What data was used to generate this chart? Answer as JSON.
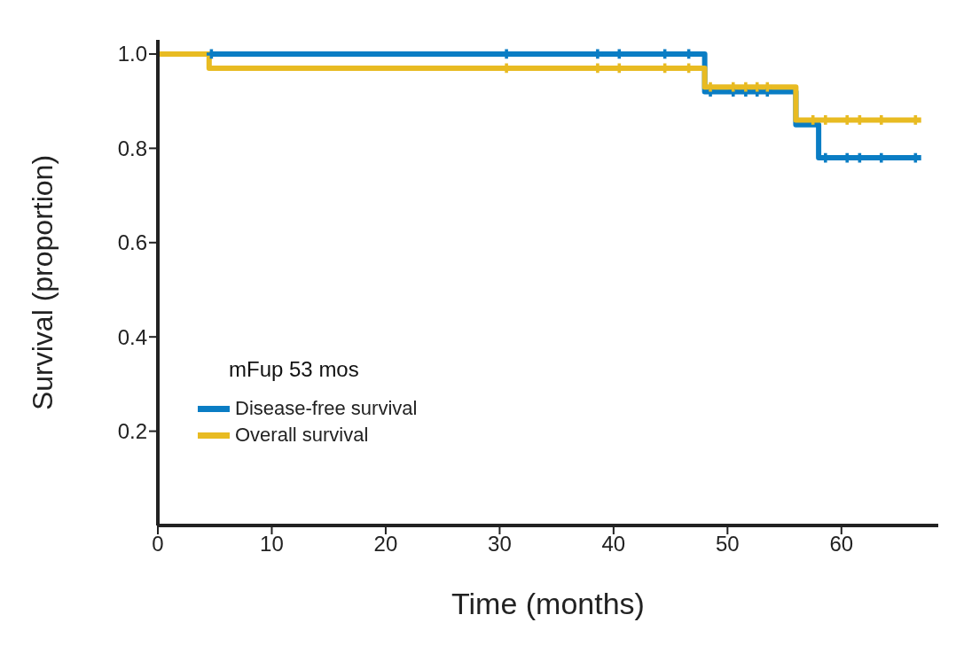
{
  "chart_data": {
    "type": "step",
    "xlabel": "Time (months)",
    "ylabel": "Survival (proportion)",
    "annotations": [
      "mFup 53 mos"
    ],
    "series": [
      {
        "name": "Disease-free survival",
        "color": "#0a7dc4",
        "x": [
          0,
          48,
          56,
          58,
          67
        ],
        "values": [
          1,
          0.92,
          0.85,
          0.78,
          0.78
        ]
      },
      {
        "name": "Overall survival",
        "color": "#e8bb22",
        "x": [
          0,
          4.5,
          48,
          56,
          67
        ],
        "values": [
          1,
          0.97,
          0.93,
          0.86,
          0.86
        ]
      },
      {
        "type": "scatter",
        "marker": "cross",
        "color": "#0a7dc4",
        "x": [
          4.7,
          30.6,
          38.6,
          40.5,
          44.5,
          46.6,
          48.5,
          50.5,
          51.6,
          52.6,
          53.5,
          58.6,
          60.5,
          61.6,
          63.5,
          66.5
        ],
        "values": [
          1,
          1,
          1,
          1,
          1,
          1,
          0.92,
          0.92,
          0.92,
          0.92,
          0.92,
          0.78,
          0.78,
          0.78,
          0.78,
          0.78
        ]
      },
      {
        "type": "scatter",
        "marker": "cross",
        "color": "#e8bb22",
        "x": [
          30.6,
          38.6,
          40.5,
          44.5,
          46.6,
          48.5,
          50.5,
          51.6,
          52.6,
          53.5,
          57.5,
          58.6,
          60.5,
          61.6,
          63.5,
          66.5
        ],
        "values": [
          0.97,
          0.97,
          0.97,
          0.97,
          0.97,
          0.93,
          0.93,
          0.93,
          0.93,
          0.93,
          0.86,
          0.86,
          0.86,
          0.86,
          0.86,
          0.86
        ]
      }
    ],
    "xlim": [
      0,
      68.5
    ],
    "xticks": [
      0,
      10,
      20,
      30,
      40,
      50,
      60
    ],
    "ylim": [
      0,
      1.03
    ],
    "yticks": [
      {
        "value": 0.2,
        "label": "0.2"
      },
      {
        "value": 0.4,
        "label": "0.4"
      },
      {
        "value": 0.6,
        "label": "0.6"
      },
      {
        "value": 0.8,
        "label": "0.8"
      },
      {
        "value": 1,
        "label": "1.0"
      }
    ],
    "legend": "bottom left",
    "grid": false,
    "line_style": "solid"
  }
}
